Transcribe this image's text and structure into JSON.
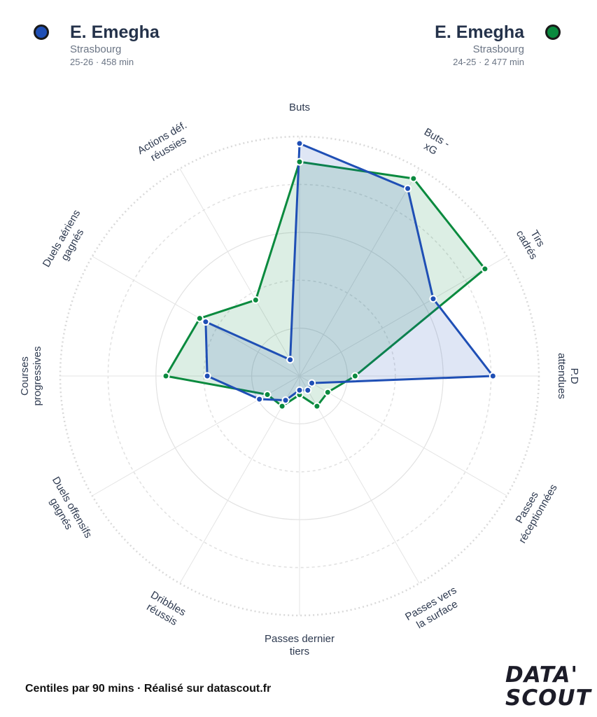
{
  "players": [
    {
      "name": "E. Emegha",
      "club": "Strasbourg",
      "meta": "25-26 · 458 min",
      "color": "#1f4fb5"
    },
    {
      "name": "E. Emegha",
      "club": "Strasbourg",
      "meta": "24-25 · 2 477 min",
      "color": "#0a8a3e"
    }
  ],
  "footer": "Centiles par 90 mins · Réalisé sur datascout.fr",
  "logo": {
    "line1": "DATA'",
    "line2": "SCOUT"
  },
  "chart_data": {
    "type": "radar",
    "categories": [
      [
        "Buts"
      ],
      [
        "Buts -",
        "xG"
      ],
      [
        "Tirs",
        "cadrés"
      ],
      [
        "P.D",
        "attendues"
      ],
      [
        "Passes",
        "réceptionnées"
      ],
      [
        "Passes vers",
        "la surface"
      ],
      [
        "Passes dernier",
        "tiers"
      ],
      [
        "Dribbles",
        "réussis"
      ],
      [
        "Duels offensifs",
        "gagnés"
      ],
      [
        "Courses",
        "progressives"
      ],
      [
        "Duels aériens",
        "gagnés"
      ],
      [
        "Actions déf.",
        "réussies"
      ]
    ],
    "rlim": [
      0,
      100
    ],
    "series": [
      {
        "player": 0,
        "values": [
          97,
          90,
          63,
          80,
          2,
          3,
          2,
          8,
          16,
          36,
          43,
          4
        ]
      },
      {
        "player": 1,
        "values": [
          89,
          95,
          89,
          20,
          10,
          11,
          4,
          11,
          12,
          54,
          46,
          34
        ]
      }
    ]
  }
}
